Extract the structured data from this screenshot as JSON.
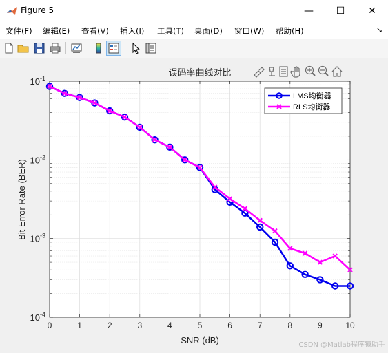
{
  "window": {
    "title": "Figure 5",
    "controls": {
      "minimize": "—",
      "maximize": "☐",
      "close": "✕"
    }
  },
  "menubar": {
    "items": [
      "文件(F)",
      "编辑(E)",
      "查看(V)",
      "插入(I)",
      "工具(T)",
      "桌面(D)",
      "窗口(W)",
      "帮助(H)"
    ],
    "overflow": "↘"
  },
  "toolbar": {
    "icons": [
      "new-figure-icon",
      "open-file-icon",
      "save-icon",
      "print-icon",
      "link-plot-icon",
      "insert-colorbar-icon",
      "insert-legend-icon",
      "pointer-icon",
      "property-inspector-icon"
    ]
  },
  "axes_toolbar": [
    "brush-icon",
    "data-tip-icon",
    "datacursor-icon",
    "pan-icon",
    "zoom-in-icon",
    "zoom-out-icon",
    "home-icon"
  ],
  "colors": {
    "lms": "#0000ee",
    "rls": "#ff00ff"
  },
  "chart_data": {
    "type": "line",
    "title": "误码率曲线对比",
    "xlabel": "SNR (dB)",
    "ylabel": "Bit Error Rate (BER)",
    "xlim": [
      0,
      10
    ],
    "ylim": [
      0.0001,
      0.1
    ],
    "yscale": "log",
    "grid": true,
    "xticks": [
      "0",
      "1",
      "2",
      "3",
      "4",
      "5",
      "6",
      "7",
      "8",
      "9",
      "10"
    ],
    "yticks": [
      {
        "base": "10",
        "exp": "-1"
      },
      {
        "base": "10",
        "exp": "-2"
      },
      {
        "base": "10",
        "exp": "-3"
      },
      {
        "base": "10",
        "exp": "-4"
      }
    ],
    "legend_position": "top-right",
    "x": [
      0,
      0.5,
      1,
      1.5,
      2,
      2.5,
      3,
      3.5,
      4,
      4.5,
      5,
      5.5,
      6,
      6.5,
      7,
      7.5,
      8,
      8.5,
      9,
      9.5,
      10
    ],
    "series": [
      {
        "name": "LMS均衡器",
        "marker": "o",
        "values": [
          0.086,
          0.07,
          0.062,
          0.053,
          0.042,
          0.035,
          0.026,
          0.018,
          0.0145,
          0.01,
          0.008,
          0.0042,
          0.0029,
          0.0021,
          0.0014,
          0.0009,
          0.00045,
          0.00035,
          0.0003,
          0.00025,
          0.00025
        ]
      },
      {
        "name": "RLS均衡器",
        "marker": "x",
        "values": [
          0.086,
          0.07,
          0.062,
          0.053,
          0.042,
          0.035,
          0.026,
          0.018,
          0.0145,
          0.01,
          0.008,
          0.0045,
          0.0032,
          0.0024,
          0.0017,
          0.00125,
          0.00075,
          0.00065,
          0.0005,
          0.0006,
          0.0004
        ]
      }
    ]
  },
  "watermark": "CSDN @Matlab程序猿助手"
}
